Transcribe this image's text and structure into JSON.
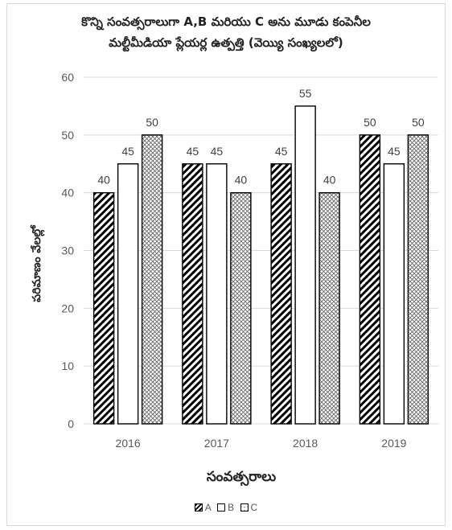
{
  "chart_data": {
    "type": "bar",
    "title_line1": "కొన్ని సంవత్సరాలుగా A,B మరియు C అను మూడు కంపెనీల",
    "title_line2": "మల్టీమీడియా ప్లేయర్ల ఉత్పత్తి (వెయ్యి సంఖ్యలలో)",
    "xlabel": "సంవత్సరాలు",
    "ylabel": "పరిమాణం వేలల్లో",
    "categories": [
      "2016",
      "2017",
      "2018",
      "2019"
    ],
    "series": [
      {
        "name": "A",
        "values": [
          40,
          45,
          45,
          50
        ],
        "pattern": "diagonal-hatch"
      },
      {
        "name": "B",
        "values": [
          45,
          45,
          55,
          45
        ],
        "pattern": "white"
      },
      {
        "name": "C",
        "values": [
          50,
          40,
          40,
          50
        ],
        "pattern": "crosshatch"
      }
    ],
    "yticks": [
      "0",
      "10",
      "20",
      "30",
      "40",
      "50",
      "60"
    ],
    "ylim": [
      0,
      60
    ],
    "grid": true,
    "legend_position": "bottom",
    "colors": {
      "gridline": "#d9d9d9",
      "bar_stroke": "#000000",
      "tick_text": "#595959"
    }
  }
}
